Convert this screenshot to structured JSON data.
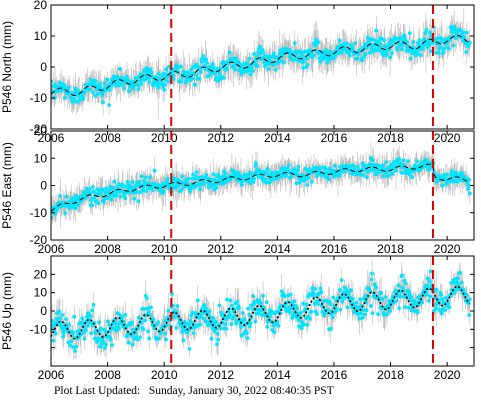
{
  "footer": {
    "label": "Plot Last Updated:",
    "date": "Sunday, January 30, 2022 08:40:35 PST"
  },
  "colors": {
    "observation": "#00e5ff",
    "error_bar": "#b8b8b8",
    "model": "#000000",
    "event_line": "#e00000",
    "frame": "#000000"
  },
  "chart_data": [
    {
      "type": "scatter",
      "station": "P546",
      "component": "North",
      "ylabel": "P546 North (mm)",
      "xlim": [
        2006,
        2020.95
      ],
      "ylim": [
        -20,
        20
      ],
      "xticks": [
        2006,
        2008,
        2010,
        2012,
        2014,
        2016,
        2018,
        2020
      ],
      "xtick_labels": [
        "2006",
        "2008",
        "2010",
        "2012",
        "2014",
        "2016",
        "2018",
        "2020"
      ],
      "yticks": [
        -20,
        -10,
        0,
        10,
        20
      ],
      "ytick_labels": [
        "-20",
        "-10",
        "0",
        "10",
        "20"
      ],
      "event_lines": [
        2010.25,
        2019.5
      ],
      "model_trend": [
        [
          2006.0,
          -8
        ],
        [
          2007.0,
          -8
        ],
        [
          2008.0,
          -6
        ],
        [
          2009.0,
          -4
        ],
        [
          2010.0,
          -3
        ],
        [
          2011.0,
          -2
        ],
        [
          2012.0,
          0
        ],
        [
          2013.0,
          1
        ],
        [
          2014.0,
          3
        ],
        [
          2015.0,
          4
        ],
        [
          2016.0,
          5
        ],
        [
          2017.0,
          6
        ],
        [
          2018.0,
          7
        ],
        [
          2019.0,
          7
        ],
        [
          2019.5,
          8
        ],
        [
          2020.0,
          9
        ],
        [
          2020.8,
          9
        ]
      ],
      "seasonal_amplitude": 1.2,
      "scatter_sd": 1.5,
      "error_bar_sd": 4
    },
    {
      "type": "scatter",
      "station": "P546",
      "component": "East",
      "ylabel": "P546 East (mm)",
      "xlim": [
        2006,
        2020.95
      ],
      "ylim": [
        -20,
        20
      ],
      "xticks": [
        2006,
        2008,
        2010,
        2012,
        2014,
        2016,
        2018,
        2020
      ],
      "xtick_labels": [
        "2006",
        "2008",
        "2010",
        "2012",
        "2014",
        "2016",
        "2018",
        "2020"
      ],
      "yticks": [
        -20,
        -10,
        0,
        10,
        20
      ],
      "ytick_labels": [
        "-20",
        "-10",
        "0",
        "10",
        "20"
      ],
      "event_lines": [
        2010.25,
        2019.5
      ],
      "model_trend": [
        [
          2006.0,
          -9
        ],
        [
          2007.0,
          -5
        ],
        [
          2008.0,
          -3
        ],
        [
          2009.0,
          -1
        ],
        [
          2010.0,
          0
        ],
        [
          2011.0,
          1
        ],
        [
          2012.0,
          2
        ],
        [
          2013.0,
          3
        ],
        [
          2014.0,
          4
        ],
        [
          2015.0,
          4
        ],
        [
          2016.0,
          5
        ],
        [
          2017.0,
          6
        ],
        [
          2018.0,
          6
        ],
        [
          2019.0,
          7
        ],
        [
          2019.5,
          7
        ],
        [
          2019.55,
          3
        ],
        [
          2020.8,
          2
        ]
      ],
      "seasonal_amplitude": 0.8,
      "scatter_sd": 1.5,
      "error_bar_sd": 4
    },
    {
      "type": "scatter",
      "station": "P546",
      "component": "Up",
      "ylabel": "P546 Up (mm)",
      "xlim": [
        2006,
        2020.95
      ],
      "ylim": [
        -30,
        30
      ],
      "xticks": [
        2006,
        2008,
        2010,
        2012,
        2014,
        2016,
        2018,
        2020
      ],
      "xtick_labels": [
        "2006",
        "2008",
        "2010",
        "2012",
        "2014",
        "2016",
        "2018",
        "2020"
      ],
      "yticks": [
        -20,
        -10,
        0,
        10,
        20
      ],
      "ytick_labels": [
        "",
        "-10",
        "0",
        "10",
        "20"
      ],
      "event_lines": [
        2010.25,
        2019.5
      ],
      "model_trend": [
        [
          2006.0,
          -11
        ],
        [
          2008.0,
          -9
        ],
        [
          2010.0,
          -6
        ],
        [
          2012.0,
          -4
        ],
        [
          2014.0,
          -1
        ],
        [
          2015.5,
          3
        ],
        [
          2016.0,
          4
        ],
        [
          2018.0,
          6
        ],
        [
          2020.0,
          8
        ],
        [
          2020.8,
          9
        ]
      ],
      "seasonal_amplitude": 5,
      "scatter_sd": 4,
      "error_bar_sd": 6
    }
  ]
}
